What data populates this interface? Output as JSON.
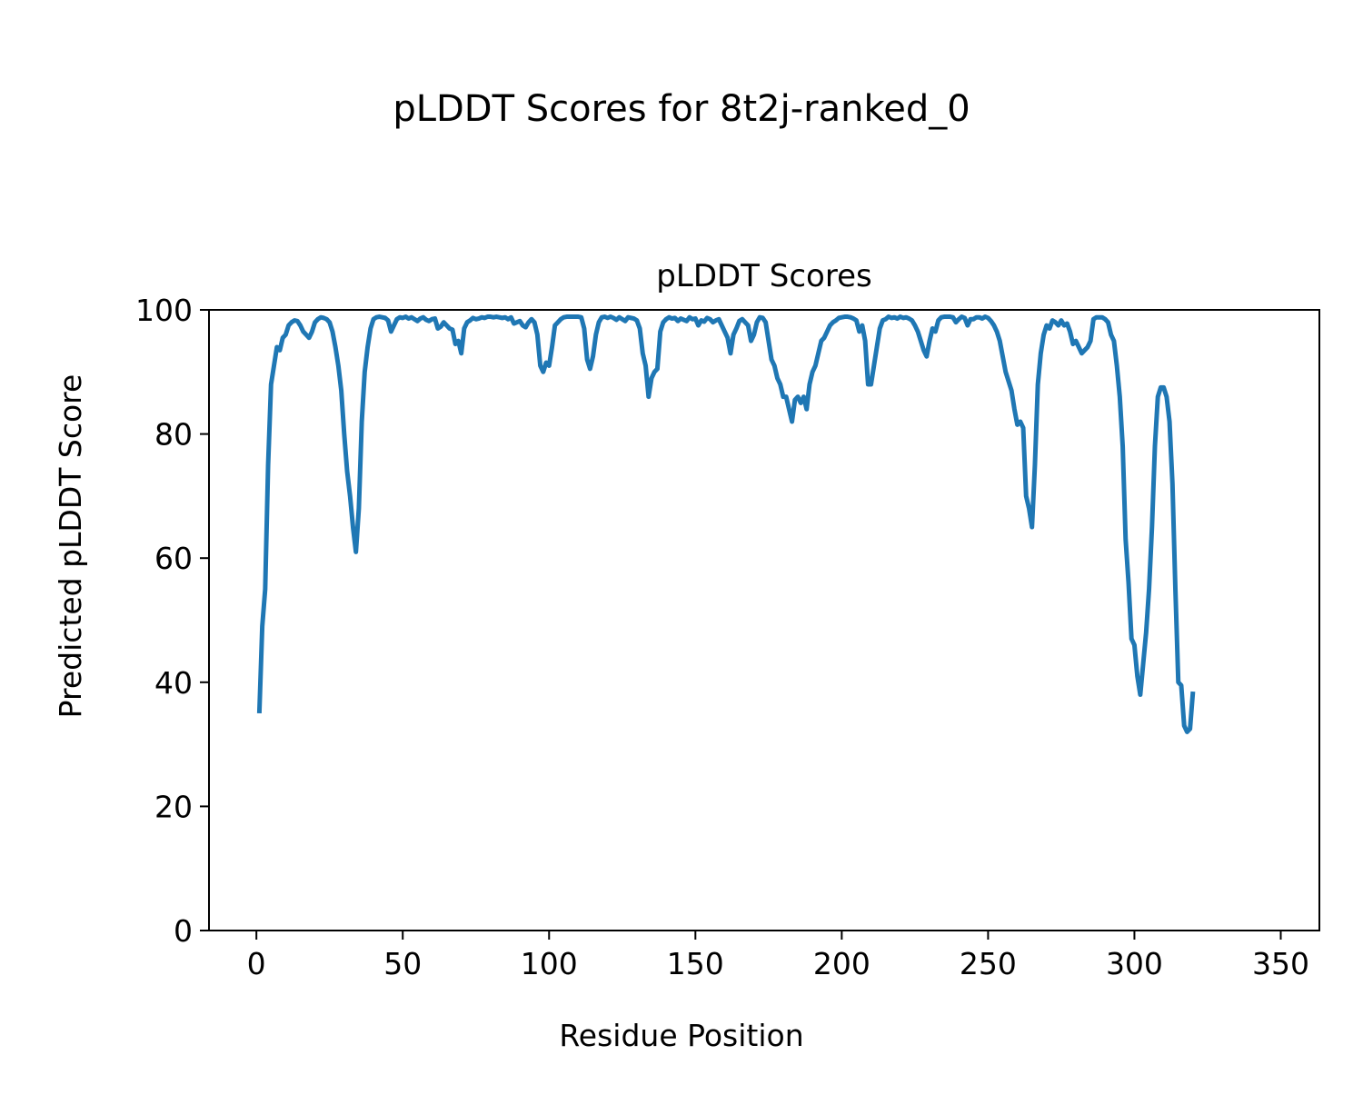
{
  "figure_title": "pLDDT Scores for 8t2j-ranked_0",
  "chart_data": {
    "type": "line",
    "title": "pLDDT Scores",
    "xlabel": "Residue Position",
    "ylabel": "Predicted pLDDT Score",
    "xlim": [
      -16.2,
      363.2
    ],
    "ylim": [
      0,
      100
    ],
    "xticks": [
      0,
      50,
      100,
      150,
      200,
      250,
      300,
      350
    ],
    "yticks": [
      0,
      20,
      40,
      60,
      80,
      100
    ],
    "grid": false,
    "legend": "none",
    "line_color": "#1f77b4",
    "series": [
      {
        "points": [
          [
            1,
            35
          ],
          [
            2,
            49
          ],
          [
            3,
            55
          ],
          [
            4,
            75
          ],
          [
            5,
            88
          ],
          [
            6,
            91
          ],
          [
            7,
            94
          ],
          [
            8,
            93.5
          ],
          [
            9,
            95.5
          ],
          [
            10,
            96
          ],
          [
            11,
            97.5
          ],
          [
            12,
            98
          ],
          [
            13,
            98.3
          ],
          [
            14,
            98.2
          ],
          [
            15,
            97.5
          ],
          [
            16,
            96.5
          ],
          [
            17,
            96
          ],
          [
            18,
            95.5
          ],
          [
            19,
            96.5
          ],
          [
            20,
            98
          ],
          [
            21,
            98.5
          ],
          [
            22,
            98.8
          ],
          [
            23,
            98.7
          ],
          [
            24,
            98.5
          ],
          [
            25,
            98
          ],
          [
            26,
            96.5
          ],
          [
            27,
            94
          ],
          [
            28,
            91
          ],
          [
            29,
            87
          ],
          [
            30,
            80
          ],
          [
            31,
            74
          ],
          [
            32,
            70
          ],
          [
            33,
            65
          ],
          [
            34,
            61
          ],
          [
            35,
            68
          ],
          [
            36,
            82
          ],
          [
            37,
            90
          ],
          [
            38,
            94
          ],
          [
            39,
            97
          ],
          [
            40,
            98.5
          ],
          [
            41,
            98.8
          ],
          [
            42,
            98.9
          ],
          [
            43,
            98.8
          ],
          [
            44,
            98.7
          ],
          [
            45,
            98.3
          ],
          [
            46,
            96.5
          ],
          [
            47,
            97.5
          ],
          [
            48,
            98.5
          ],
          [
            49,
            98.8
          ],
          [
            50,
            98.7
          ],
          [
            51,
            98.9
          ],
          [
            52,
            98.6
          ],
          [
            53,
            98.8
          ],
          [
            54,
            98.5
          ],
          [
            55,
            98.2
          ],
          [
            56,
            98.6
          ],
          [
            57,
            98.8
          ],
          [
            58,
            98.4
          ],
          [
            59,
            98.2
          ],
          [
            60,
            98.5
          ],
          [
            61,
            98.6
          ],
          [
            62,
            97
          ],
          [
            63,
            97.3
          ],
          [
            64,
            98
          ],
          [
            65,
            97.5
          ],
          [
            66,
            97
          ],
          [
            67,
            96.8
          ],
          [
            68,
            94.5
          ],
          [
            69,
            95
          ],
          [
            70,
            93
          ],
          [
            71,
            97
          ],
          [
            72,
            98
          ],
          [
            73,
            98.3
          ],
          [
            74,
            98.7
          ],
          [
            75,
            98.5
          ],
          [
            76,
            98.6
          ],
          [
            77,
            98.8
          ],
          [
            78,
            98.7
          ],
          [
            79,
            98.9
          ],
          [
            80,
            98.9
          ],
          [
            81,
            98.8
          ],
          [
            82,
            98.9
          ],
          [
            83,
            98.8
          ],
          [
            84,
            98.7
          ],
          [
            85,
            98.8
          ],
          [
            86,
            98.5
          ],
          [
            87,
            98.8
          ],
          [
            88,
            97.8
          ],
          [
            89,
            98
          ],
          [
            90,
            98.2
          ],
          [
            91,
            97.5
          ],
          [
            92,
            97.2
          ],
          [
            93,
            98
          ],
          [
            94,
            98.5
          ],
          [
            95,
            98
          ],
          [
            96,
            96
          ],
          [
            97,
            91
          ],
          [
            98,
            90
          ],
          [
            99,
            91.5
          ],
          [
            100,
            91
          ],
          [
            101,
            94
          ],
          [
            102,
            97.5
          ],
          [
            103,
            98
          ],
          [
            104,
            98.5
          ],
          [
            105,
            98.8
          ],
          [
            106,
            98.9
          ],
          [
            107,
            98.9
          ],
          [
            108,
            98.9
          ],
          [
            109,
            98.9
          ],
          [
            110,
            98.9
          ],
          [
            111,
            98.8
          ],
          [
            112,
            97
          ],
          [
            113,
            92
          ],
          [
            114,
            90.5
          ],
          [
            115,
            92.5
          ],
          [
            116,
            96
          ],
          [
            117,
            98
          ],
          [
            118,
            98.8
          ],
          [
            119,
            98.9
          ],
          [
            120,
            98.7
          ],
          [
            121,
            98.9
          ],
          [
            122,
            98.7
          ],
          [
            123,
            98.4
          ],
          [
            124,
            98.8
          ],
          [
            125,
            98.5
          ],
          [
            126,
            98.2
          ],
          [
            127,
            98.8
          ],
          [
            128,
            98.7
          ],
          [
            129,
            98.6
          ],
          [
            130,
            98.3
          ],
          [
            131,
            97
          ],
          [
            132,
            93
          ],
          [
            133,
            91
          ],
          [
            134,
            86
          ],
          [
            135,
            89
          ],
          [
            136,
            90
          ],
          [
            137,
            90.5
          ],
          [
            138,
            96.5
          ],
          [
            139,
            98
          ],
          [
            140,
            98.5
          ],
          [
            141,
            98.8
          ],
          [
            142,
            98.6
          ],
          [
            143,
            98.7
          ],
          [
            144,
            98.2
          ],
          [
            145,
            98.6
          ],
          [
            146,
            98.4
          ],
          [
            147,
            98.2
          ],
          [
            148,
            98.8
          ],
          [
            149,
            98.5
          ],
          [
            150,
            98.6
          ],
          [
            151,
            97.5
          ],
          [
            152,
            98.3
          ],
          [
            153,
            98.1
          ],
          [
            154,
            98.7
          ],
          [
            155,
            98.5
          ],
          [
            156,
            98
          ],
          [
            157,
            98.3
          ],
          [
            158,
            98.5
          ],
          [
            159,
            97.5
          ],
          [
            160,
            96.5
          ],
          [
            161,
            95.5
          ],
          [
            162,
            93
          ],
          [
            163,
            96
          ],
          [
            164,
            97
          ],
          [
            165,
            98.2
          ],
          [
            166,
            98.5
          ],
          [
            167,
            98
          ],
          [
            168,
            97.5
          ],
          [
            169,
            95
          ],
          [
            170,
            96
          ],
          [
            171,
            98
          ],
          [
            172,
            98.8
          ],
          [
            173,
            98.7
          ],
          [
            174,
            98
          ],
          [
            175,
            95
          ],
          [
            176,
            92
          ],
          [
            177,
            91
          ],
          [
            178,
            89
          ],
          [
            179,
            88
          ],
          [
            180,
            86
          ],
          [
            181,
            86
          ],
          [
            182,
            84
          ],
          [
            183,
            82
          ],
          [
            184,
            85.5
          ],
          [
            185,
            86
          ],
          [
            186,
            85
          ],
          [
            187,
            86
          ],
          [
            188,
            84
          ],
          [
            189,
            88
          ],
          [
            190,
            90
          ],
          [
            191,
            91
          ],
          [
            192,
            93
          ],
          [
            193,
            95
          ],
          [
            194,
            95.5
          ],
          [
            195,
            96.5
          ],
          [
            196,
            97.5
          ],
          [
            197,
            98
          ],
          [
            198,
            98.3
          ],
          [
            199,
            98.7
          ],
          [
            200,
            98.8
          ],
          [
            201,
            98.9
          ],
          [
            202,
            98.9
          ],
          [
            203,
            98.8
          ],
          [
            204,
            98.6
          ],
          [
            205,
            98.3
          ],
          [
            206,
            96.5
          ],
          [
            207,
            97.5
          ],
          [
            208,
            95
          ],
          [
            209,
            88
          ],
          [
            210,
            88
          ],
          [
            211,
            91
          ],
          [
            212,
            94
          ],
          [
            213,
            97
          ],
          [
            214,
            98.3
          ],
          [
            215,
            98.5
          ],
          [
            216,
            98.9
          ],
          [
            217,
            98.7
          ],
          [
            218,
            98.8
          ],
          [
            219,
            98.6
          ],
          [
            220,
            98.9
          ],
          [
            221,
            98.7
          ],
          [
            222,
            98.8
          ],
          [
            223,
            98.6
          ],
          [
            224,
            98.3
          ],
          [
            225,
            97.5
          ],
          [
            226,
            96.5
          ],
          [
            227,
            95
          ],
          [
            228,
            93.5
          ],
          [
            229,
            92.5
          ],
          [
            230,
            95
          ],
          [
            231,
            97
          ],
          [
            232,
            96.5
          ],
          [
            233,
            98.3
          ],
          [
            234,
            98.8
          ],
          [
            235,
            98.9
          ],
          [
            236,
            98.9
          ],
          [
            237,
            98.9
          ],
          [
            238,
            98.8
          ],
          [
            239,
            98
          ],
          [
            240,
            98.5
          ],
          [
            241,
            98.9
          ],
          [
            242,
            98.7
          ],
          [
            243,
            97.5
          ],
          [
            244,
            98.5
          ],
          [
            245,
            98.5
          ],
          [
            246,
            98.8
          ],
          [
            247,
            98.8
          ],
          [
            248,
            98.6
          ],
          [
            249,
            98.9
          ],
          [
            250,
            98.7
          ],
          [
            251,
            98.2
          ],
          [
            252,
            97.5
          ],
          [
            253,
            96.5
          ],
          [
            254,
            95
          ],
          [
            255,
            92.5
          ],
          [
            256,
            90
          ],
          [
            257,
            88.5
          ],
          [
            258,
            87
          ],
          [
            259,
            84
          ],
          [
            260,
            81.5
          ],
          [
            261,
            82
          ],
          [
            262,
            81
          ],
          [
            263,
            70
          ],
          [
            264,
            68
          ],
          [
            265,
            65
          ],
          [
            266,
            75
          ],
          [
            267,
            88
          ],
          [
            268,
            93
          ],
          [
            269,
            96
          ],
          [
            270,
            97.5
          ],
          [
            271,
            97
          ],
          [
            272,
            98.3
          ],
          [
            273,
            98
          ],
          [
            274,
            97.5
          ],
          [
            275,
            98.3
          ],
          [
            276,
            97.5
          ],
          [
            277,
            97.8
          ],
          [
            278,
            96.5
          ],
          [
            279,
            94.5
          ],
          [
            280,
            95
          ],
          [
            281,
            94
          ],
          [
            282,
            93
          ],
          [
            283,
            93.5
          ],
          [
            284,
            94
          ],
          [
            285,
            95
          ],
          [
            286,
            98.5
          ],
          [
            287,
            98.8
          ],
          [
            288,
            98.8
          ],
          [
            289,
            98.8
          ],
          [
            290,
            98.5
          ],
          [
            291,
            98
          ],
          [
            292,
            96
          ],
          [
            293,
            95
          ],
          [
            294,
            91
          ],
          [
            295,
            86
          ],
          [
            296,
            78
          ],
          [
            297,
            63
          ],
          [
            298,
            56
          ],
          [
            299,
            47
          ],
          [
            300,
            46
          ],
          [
            301,
            41
          ],
          [
            302,
            38
          ],
          [
            303,
            43
          ],
          [
            304,
            48
          ],
          [
            305,
            55
          ],
          [
            306,
            65
          ],
          [
            307,
            78
          ],
          [
            308,
            86
          ],
          [
            309,
            87.5
          ],
          [
            310,
            87.5
          ],
          [
            311,
            86
          ],
          [
            312,
            82
          ],
          [
            313,
            72
          ],
          [
            314,
            55
          ],
          [
            315,
            40
          ],
          [
            316,
            39.5
          ],
          [
            317,
            33
          ],
          [
            318,
            32
          ],
          [
            319,
            32.5
          ],
          [
            320,
            38.5
          ]
        ]
      }
    ]
  }
}
